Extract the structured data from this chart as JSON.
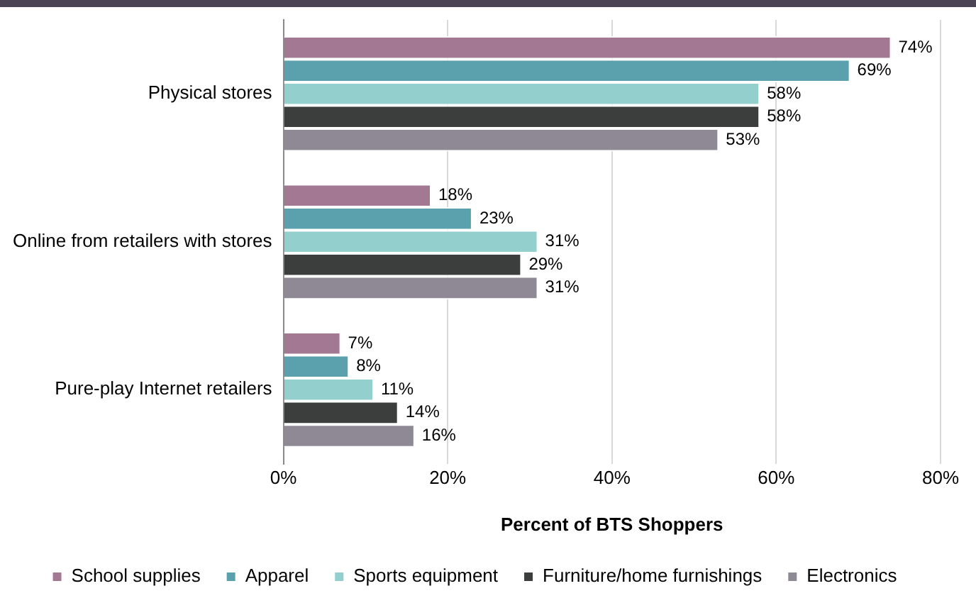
{
  "chart_data": {
    "type": "bar",
    "orientation": "horizontal",
    "categories": [
      "Physical stores",
      "Online from retailers with stores",
      "Pure-play Internet retailers"
    ],
    "series": [
      {
        "name": "School supplies",
        "color": "#a27892",
        "values": [
          74,
          18,
          7
        ],
        "value_labels": [
          "74%",
          "18%",
          "7%"
        ]
      },
      {
        "name": "Apparel",
        "color": "#5ba0ad",
        "values": [
          69,
          23,
          8
        ],
        "value_labels": [
          "69%",
          "23%",
          "8%"
        ]
      },
      {
        "name": "Sports equipment",
        "color": "#92cfcd",
        "values": [
          58,
          31,
          11
        ],
        "value_labels": [
          "58%",
          "31%",
          "11%"
        ]
      },
      {
        "name": "Furniture/home furnishings",
        "color": "#3b3e3c",
        "values": [
          58,
          29,
          14
        ],
        "value_labels": [
          "58%",
          "29%",
          "14%"
        ]
      },
      {
        "name": "Electronics",
        "color": "#8f8995",
        "values": [
          53,
          31,
          16
        ],
        "value_labels": [
          "53%",
          "31%",
          "16%"
        ]
      }
    ],
    "xlim": [
      0,
      80
    ],
    "xticks": [
      {
        "value": 0,
        "label": "0%"
      },
      {
        "value": 20,
        "label": "20%"
      },
      {
        "value": 40,
        "label": "40%"
      },
      {
        "value": 60,
        "label": "60%"
      },
      {
        "value": 80,
        "label": "80%"
      }
    ],
    "xlabel": "Percent of BTS Shoppers",
    "grid": "x",
    "legend": "bottom"
  }
}
